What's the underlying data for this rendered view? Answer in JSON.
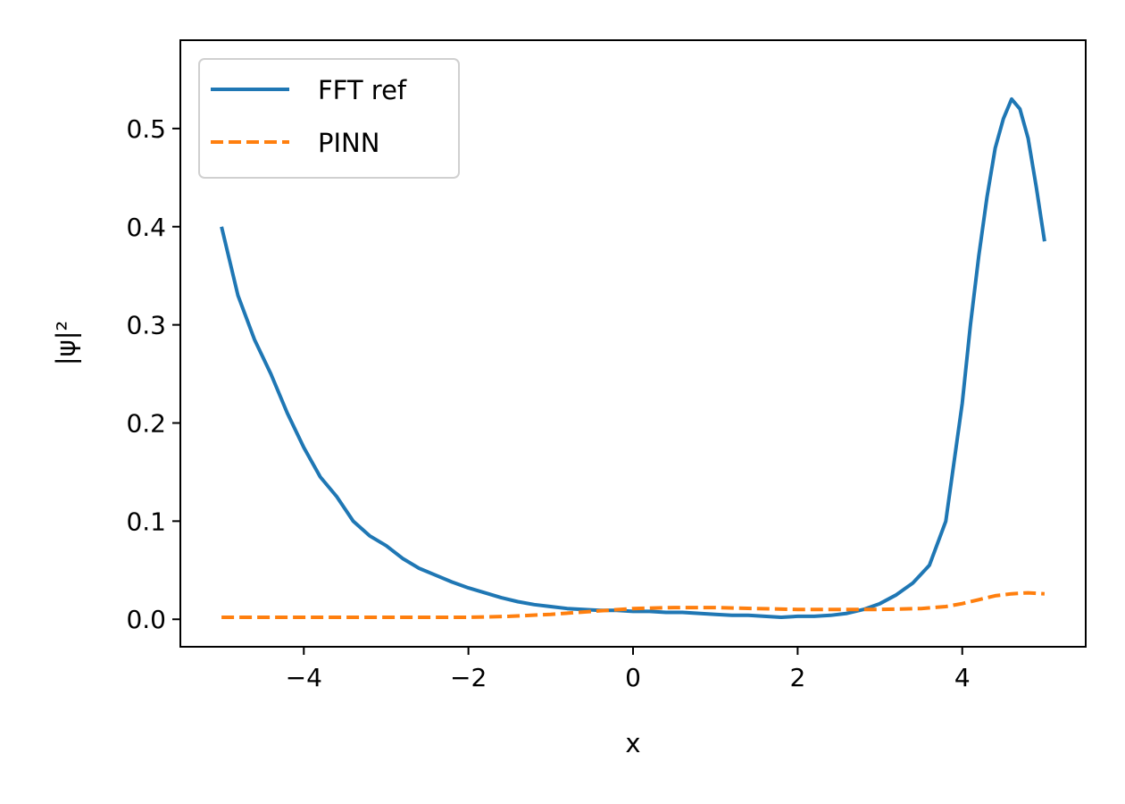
{
  "chart_data": {
    "type": "line",
    "title": "",
    "xlabel": "x",
    "ylabel": "|ψ|²",
    "xlim": [
      -5.5,
      5.5
    ],
    "ylim": [
      -0.028,
      0.59
    ],
    "xticks": [
      -4,
      -2,
      0,
      2,
      4
    ],
    "xtick_labels": [
      "−4",
      "−2",
      "0",
      "2",
      "4"
    ],
    "yticks": [
      0.0,
      0.1,
      0.2,
      0.3,
      0.4,
      0.5
    ],
    "ytick_labels": [
      "0.0",
      "0.1",
      "0.2",
      "0.3",
      "0.4",
      "0.5"
    ],
    "grid": false,
    "legend_position": "upper-left",
    "series": [
      {
        "name": "FFT ref",
        "color": "#1f77b4",
        "style": "solid",
        "x": [
          -5.0,
          -4.8,
          -4.6,
          -4.4,
          -4.2,
          -4.0,
          -3.8,
          -3.6,
          -3.4,
          -3.2,
          -3.0,
          -2.8,
          -2.6,
          -2.4,
          -2.2,
          -2.0,
          -1.8,
          -1.6,
          -1.4,
          -1.2,
          -1.0,
          -0.8,
          -0.6,
          -0.4,
          -0.2,
          0.0,
          0.2,
          0.4,
          0.6,
          0.8,
          1.0,
          1.2,
          1.4,
          1.6,
          1.8,
          2.0,
          2.2,
          2.4,
          2.6,
          2.8,
          3.0,
          3.2,
          3.4,
          3.6,
          3.8,
          3.9,
          4.0,
          4.1,
          4.2,
          4.3,
          4.4,
          4.5,
          4.6,
          4.7,
          4.8,
          4.9,
          5.0
        ],
        "y": [
          0.4,
          0.33,
          0.285,
          0.25,
          0.21,
          0.175,
          0.145,
          0.125,
          0.1,
          0.085,
          0.075,
          0.062,
          0.052,
          0.045,
          0.038,
          0.032,
          0.027,
          0.022,
          0.018,
          0.015,
          0.013,
          0.011,
          0.01,
          0.009,
          0.009,
          0.008,
          0.008,
          0.007,
          0.007,
          0.006,
          0.005,
          0.004,
          0.004,
          0.003,
          0.002,
          0.003,
          0.003,
          0.004,
          0.006,
          0.01,
          0.016,
          0.025,
          0.037,
          0.055,
          0.1,
          0.16,
          0.22,
          0.3,
          0.37,
          0.43,
          0.48,
          0.51,
          0.53,
          0.52,
          0.49,
          0.44,
          0.385
        ]
      },
      {
        "name": "PINN",
        "color": "#ff7f0e",
        "style": "dashed",
        "x": [
          -5.0,
          -4.5,
          -4.0,
          -3.5,
          -3.0,
          -2.5,
          -2.0,
          -1.5,
          -1.0,
          -0.5,
          0.0,
          0.5,
          1.0,
          1.5,
          2.0,
          2.5,
          3.0,
          3.5,
          3.8,
          4.0,
          4.2,
          4.4,
          4.6,
          4.8,
          5.0
        ],
        "y": [
          0.002,
          0.002,
          0.002,
          0.002,
          0.002,
          0.002,
          0.002,
          0.003,
          0.005,
          0.008,
          0.011,
          0.012,
          0.012,
          0.011,
          0.01,
          0.01,
          0.01,
          0.011,
          0.013,
          0.016,
          0.02,
          0.024,
          0.026,
          0.027,
          0.026
        ]
      }
    ]
  }
}
